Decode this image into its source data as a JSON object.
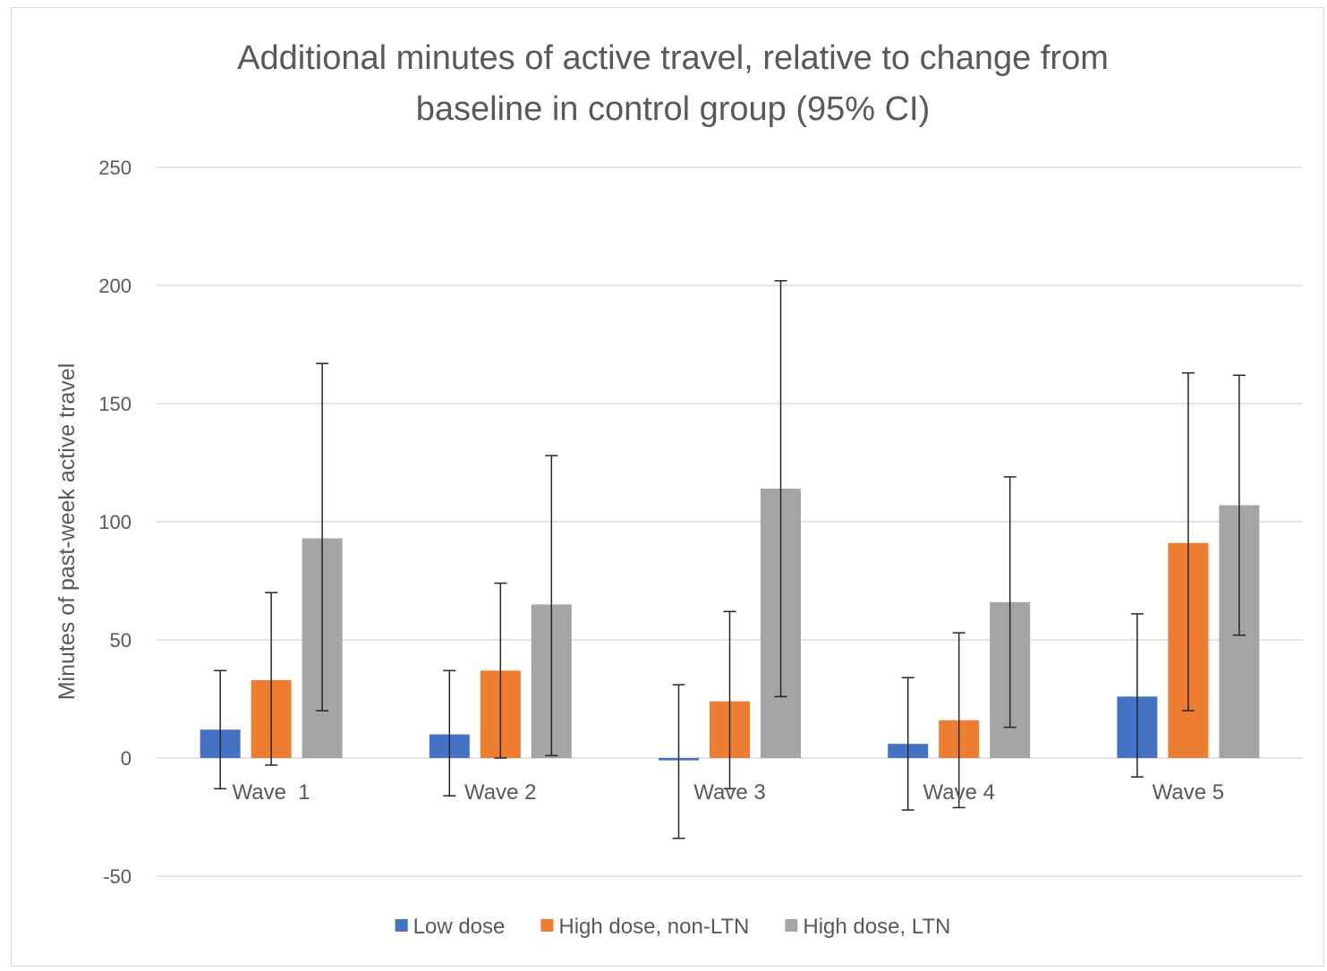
{
  "chart_data": {
    "type": "bar",
    "title_line1": "Additional minutes of active travel, relative to change from",
    "title_line2": "baseline in control group (95% CI)",
    "xlabel": "",
    "ylabel": "Minutes of past-week active travel",
    "ylim": [
      -50,
      250
    ],
    "yticks": [
      -50,
      0,
      50,
      100,
      150,
      200,
      250
    ],
    "ytick_labels": [
      "-50",
      "0",
      "50",
      "100",
      "150",
      "200",
      "250"
    ],
    "grid": true,
    "legend_position": "bottom",
    "categories": [
      "Wave  1",
      "Wave 2",
      "Wave 3",
      "Wave 4",
      "Wave 5"
    ],
    "series": [
      {
        "name": "Low dose",
        "color": "#4472c4",
        "values": [
          12,
          10,
          -1,
          6,
          26
        ],
        "ci_low": [
          -13,
          -16,
          -34,
          -22,
          -8
        ],
        "ci_high": [
          37,
          37,
          31,
          34,
          61
        ]
      },
      {
        "name": "High dose, non-LTN",
        "color": "#ed7d31",
        "values": [
          33,
          37,
          24,
          16,
          91
        ],
        "ci_low": [
          -3,
          0,
          -13,
          -21,
          20
        ],
        "ci_high": [
          70,
          74,
          62,
          53,
          163
        ]
      },
      {
        "name": "High dose, LTN",
        "color": "#a5a5a5",
        "values": [
          93,
          65,
          114,
          66,
          107
        ],
        "ci_low": [
          20,
          1,
          26,
          13,
          52
        ],
        "ci_high": [
          167,
          128,
          202,
          119,
          162
        ]
      }
    ]
  }
}
